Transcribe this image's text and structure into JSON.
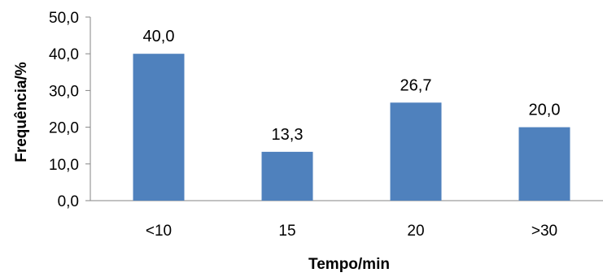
{
  "chart_data": {
    "type": "bar",
    "categories": [
      "<10",
      "15",
      "20",
      ">30"
    ],
    "values": [
      40.0,
      13.3,
      26.7,
      20.0
    ],
    "value_labels": [
      "40,0",
      "13,3",
      "26,7",
      "20,0"
    ],
    "title": "",
    "xlabel": "Tempo/min",
    "ylabel": "Frequência/%",
    "ylim": [
      0,
      50
    ],
    "yticks": [
      0,
      10,
      20,
      30,
      40,
      50
    ],
    "ytick_labels": [
      "0,0",
      "10,0",
      "20,0",
      "30,0",
      "40,0",
      "50,0"
    ],
    "grid": false,
    "legend": "none",
    "bar_color": "#4F81BD"
  }
}
